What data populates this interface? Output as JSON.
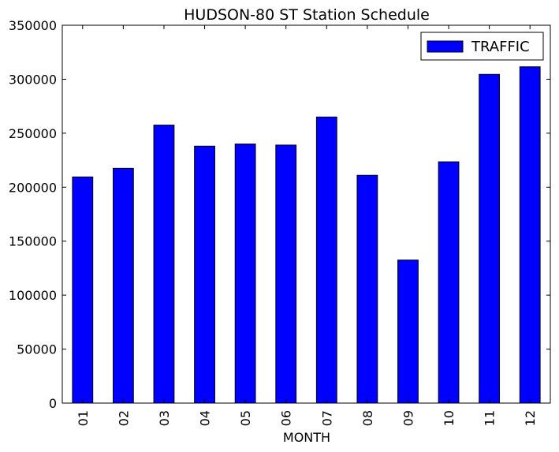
{
  "chart_data": {
    "type": "bar",
    "title": "HUDSON-80 ST Station Schedule",
    "xlabel": "MONTH",
    "ylabel": "",
    "categories": [
      "01",
      "02",
      "03",
      "04",
      "05",
      "06",
      "07",
      "08",
      "09",
      "10",
      "11",
      "12"
    ],
    "series": [
      {
        "name": "TRAFFIC",
        "color": "#0000ff",
        "values": [
          209500,
          217500,
          257500,
          238000,
          240000,
          239000,
          265000,
          211000,
          132500,
          223500,
          304500,
          311500
        ]
      }
    ],
    "ylim": [
      0,
      350000
    ],
    "yticks": [
      "0",
      "50000",
      "100000",
      "150000",
      "200000",
      "250000",
      "300000",
      "350000"
    ],
    "ytick_values": [
      0,
      50000,
      100000,
      150000,
      200000,
      250000,
      300000,
      350000
    ],
    "legend_position": "top-right",
    "grid": false
  }
}
